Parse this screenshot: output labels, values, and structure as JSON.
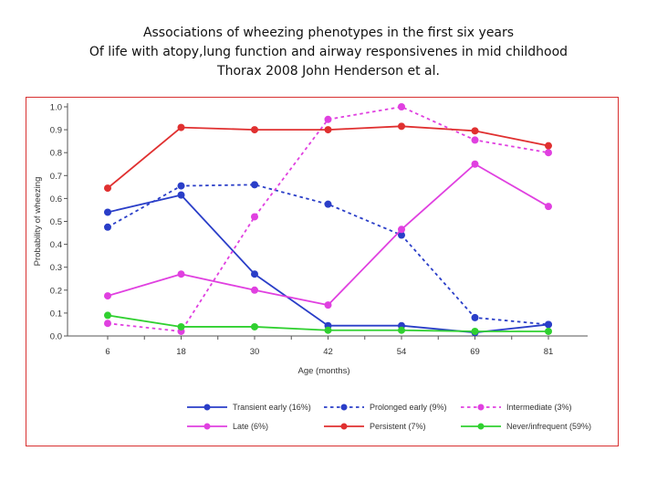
{
  "title_lines": [
    "Associations of wheezing phenotypes in  the first six years",
    "Of life with atopy,lung function and airway responsivenes in mid childhood",
    "Thorax 2008 John Henderson et al."
  ],
  "chart_data": {
    "type": "line",
    "xlabel": "Age (months)",
    "ylabel": "Probability of wheezing",
    "ylim": [
      0,
      1.0
    ],
    "yticks": [
      "0.0",
      "0.1",
      "0.2",
      "0.3",
      "0.4",
      "0.5",
      "0.6",
      "0.7",
      "0.8",
      "0.9",
      "1.0"
    ],
    "categories": [
      "6",
      "18",
      "30",
      "42",
      "54",
      "69",
      "81"
    ],
    "grid": false,
    "legend_position": "bottom",
    "series": [
      {
        "name": "Transient early (16%)",
        "color": "#2a3ec8",
        "dash": false,
        "values": [
          0.54,
          0.615,
          0.27,
          0.045,
          0.045,
          0.015,
          0.05
        ]
      },
      {
        "name": "Prolonged early (9%)",
        "color": "#2a3ec8",
        "dash": true,
        "values": [
          0.475,
          0.655,
          0.66,
          0.575,
          0.44,
          0.08,
          0.05
        ]
      },
      {
        "name": "Intermediate (3%)",
        "color": "#e040e0",
        "dash": true,
        "values": [
          0.055,
          0.02,
          0.52,
          0.945,
          1.0,
          0.855,
          0.8
        ]
      },
      {
        "name": "Late (6%)",
        "color": "#e040e0",
        "dash": false,
        "values": [
          0.175,
          0.27,
          0.2,
          0.135,
          0.465,
          0.75,
          0.565
        ]
      },
      {
        "name": "Persistent (7%)",
        "color": "#e03030",
        "dash": false,
        "values": [
          0.645,
          0.91,
          0.9,
          0.9,
          0.915,
          0.895,
          0.83
        ]
      },
      {
        "name": "Never/infrequent (59%)",
        "color": "#30d030",
        "dash": false,
        "values": [
          0.09,
          0.04,
          0.04,
          0.025,
          0.025,
          0.02,
          0.02
        ]
      }
    ]
  }
}
